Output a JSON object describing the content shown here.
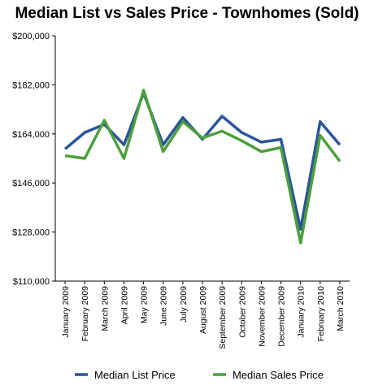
{
  "chart_data": {
    "type": "line",
    "title": "Median List vs Sales Price - Townhomes (Sold)",
    "categories": [
      "January 2009",
      "February 2009",
      "March 2009",
      "April 2009",
      "May 2009",
      "June 2009",
      "July 2009",
      "August 2009",
      "September 2009",
      "October 2009",
      "November 2009",
      "December 2009",
      "January 2010",
      "February 2010",
      "March 2010"
    ],
    "yticks": [
      "$110,000",
      "$128,000",
      "$146,000",
      "$164,000",
      "$182,000",
      "$200,000"
    ],
    "ytick_values": [
      110000,
      128000,
      146000,
      164000,
      182000,
      200000
    ],
    "ylim": [
      110000,
      200000
    ],
    "grid": false,
    "legend_position": "bottom",
    "series": [
      {
        "name": "Median List Price",
        "color": "#2a5599",
        "values": [
          158500,
          164500,
          167500,
          160000,
          179000,
          160000,
          170000,
          162000,
          170500,
          164500,
          161000,
          162000,
          129000,
          168500,
          160000
        ]
      },
      {
        "name": "Median Sales Price",
        "color": "#4c9f3c",
        "values": [
          156000,
          155000,
          169000,
          155000,
          180000,
          157500,
          168500,
          162500,
          165000,
          161500,
          157500,
          159000,
          124000,
          163500,
          154000
        ]
      }
    ]
  }
}
